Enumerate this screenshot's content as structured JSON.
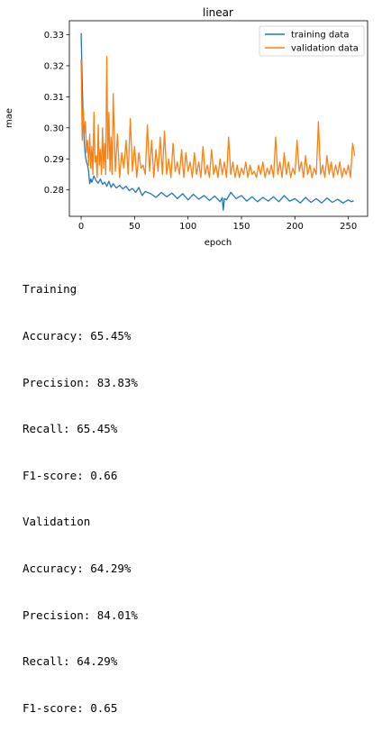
{
  "chart_data": {
    "type": "line",
    "title": "linear",
    "xlabel": "epoch",
    "ylabel": "mae",
    "xlim": [
      -11,
      268
    ],
    "ylim": [
      0.2715,
      0.3345
    ],
    "xticks": [
      0,
      50,
      100,
      150,
      200,
      250
    ],
    "yticks": [
      0.28,
      0.29,
      0.3,
      0.31,
      0.32,
      0.33
    ],
    "grid": false,
    "legend_position": "top-right",
    "series": [
      {
        "name": "training data",
        "color": "#1f77b4",
        "x": [
          0,
          1,
          2,
          3,
          4,
          5,
          6,
          7,
          8,
          9,
          10,
          12,
          14,
          16,
          18,
          20,
          22,
          24,
          26,
          28,
          30,
          33,
          36,
          39,
          42,
          45,
          48,
          51,
          54,
          57,
          60,
          65,
          70,
          75,
          80,
          85,
          90,
          95,
          100,
          105,
          110,
          115,
          120,
          125,
          130,
          132,
          133,
          134,
          136,
          140,
          145,
          150,
          155,
          160,
          165,
          170,
          175,
          180,
          185,
          190,
          195,
          200,
          205,
          210,
          215,
          220,
          225,
          230,
          235,
          240,
          245,
          250,
          253,
          255
        ],
        "y": [
          0.3305,
          0.315,
          0.302,
          0.295,
          0.291,
          0.289,
          0.288,
          0.286,
          0.282,
          0.2835,
          0.2825,
          0.2845,
          0.283,
          0.2822,
          0.2835,
          0.2818,
          0.2825,
          0.2812,
          0.2828,
          0.2808,
          0.282,
          0.2806,
          0.2815,
          0.2803,
          0.2812,
          0.2798,
          0.2805,
          0.2792,
          0.2808,
          0.2782,
          0.2795,
          0.2788,
          0.2776,
          0.2792,
          0.2778,
          0.279,
          0.2772,
          0.2788,
          0.2768,
          0.2786,
          0.277,
          0.2782,
          0.2766,
          0.278,
          0.2762,
          0.2775,
          0.2735,
          0.2772,
          0.2768,
          0.2792,
          0.2772,
          0.2782,
          0.2764,
          0.2778,
          0.2762,
          0.2776,
          0.2764,
          0.2778,
          0.2762,
          0.2782,
          0.2764,
          0.2772,
          0.2758,
          0.2776,
          0.276,
          0.2772,
          0.2758,
          0.2774,
          0.276,
          0.277,
          0.2758,
          0.2768,
          0.2762,
          0.2765
        ]
      },
      {
        "name": "validation data",
        "color": "#ff7f0e",
        "x": [
          0,
          1,
          2,
          3,
          4,
          5,
          6,
          7,
          8,
          9,
          10,
          11,
          12,
          13,
          14,
          15,
          16,
          17,
          18,
          19,
          20,
          21,
          22,
          23,
          24,
          25,
          26,
          27,
          28,
          29,
          30,
          32,
          34,
          36,
          38,
          40,
          42,
          44,
          46,
          48,
          50,
          52,
          54,
          56,
          58,
          60,
          62,
          64,
          66,
          68,
          70,
          72,
          74,
          76,
          78,
          80,
          82,
          84,
          86,
          88,
          90,
          92,
          94,
          96,
          98,
          100,
          102,
          104,
          106,
          108,
          110,
          112,
          114,
          116,
          118,
          120,
          122,
          124,
          126,
          128,
          130,
          132,
          134,
          136,
          138,
          140,
          142,
          144,
          146,
          148,
          150,
          152,
          154,
          156,
          158,
          160,
          162,
          164,
          166,
          168,
          170,
          172,
          174,
          176,
          178,
          180,
          182,
          184,
          186,
          188,
          190,
          192,
          194,
          196,
          198,
          200,
          202,
          204,
          206,
          208,
          210,
          212,
          214,
          216,
          218,
          220,
          222,
          224,
          226,
          228,
          230,
          232,
          234,
          236,
          238,
          240,
          242,
          244,
          246,
          248,
          250,
          252,
          254,
          256
        ],
        "y": [
          0.322,
          0.296,
          0.306,
          0.298,
          0.302,
          0.292,
          0.296,
          0.288,
          0.298,
          0.287,
          0.294,
          0.285,
          0.305,
          0.289,
          0.291,
          0.284,
          0.301,
          0.288,
          0.293,
          0.285,
          0.3,
          0.287,
          0.295,
          0.285,
          0.323,
          0.29,
          0.305,
          0.286,
          0.297,
          0.285,
          0.311,
          0.286,
          0.298,
          0.284,
          0.292,
          0.287,
          0.296,
          0.285,
          0.303,
          0.286,
          0.294,
          0.284,
          0.292,
          0.287,
          0.288,
          0.285,
          0.301,
          0.286,
          0.296,
          0.284,
          0.293,
          0.286,
          0.297,
          0.285,
          0.299,
          0.285,
          0.29,
          0.284,
          0.295,
          0.286,
          0.289,
          0.285,
          0.293,
          0.284,
          0.292,
          0.286,
          0.289,
          0.284,
          0.292,
          0.285,
          0.289,
          0.284,
          0.294,
          0.285,
          0.288,
          0.284,
          0.293,
          0.285,
          0.288,
          0.284,
          0.29,
          0.285,
          0.289,
          0.284,
          0.297,
          0.285,
          0.289,
          0.284,
          0.288,
          0.284,
          0.287,
          0.285,
          0.289,
          0.284,
          0.288,
          0.285,
          0.286,
          0.284,
          0.288,
          0.285,
          0.289,
          0.284,
          0.287,
          0.285,
          0.288,
          0.284,
          0.297,
          0.285,
          0.289,
          0.284,
          0.292,
          0.285,
          0.289,
          0.284,
          0.287,
          0.285,
          0.296,
          0.286,
          0.289,
          0.284,
          0.291,
          0.285,
          0.288,
          0.284,
          0.287,
          0.285,
          0.302,
          0.285,
          0.288,
          0.284,
          0.291,
          0.285,
          0.289,
          0.284,
          0.288,
          0.285,
          0.289,
          0.284,
          0.287,
          0.285,
          0.288,
          0.284,
          0.295,
          0.291
        ]
      }
    ]
  },
  "metrics": {
    "training_header": "Training",
    "train_accuracy": "Accuracy: 65.45%",
    "train_precision": "Precision: 83.83%",
    "train_recall": "Recall: 65.45%",
    "train_f1": "F1-score: 0.66",
    "validation_header": "Validation",
    "val_accuracy": "Accuracy: 64.29%",
    "val_precision": "Precision: 84.01%",
    "val_recall": "Recall: 64.29%",
    "val_f1": "F1-score: 0.65"
  }
}
